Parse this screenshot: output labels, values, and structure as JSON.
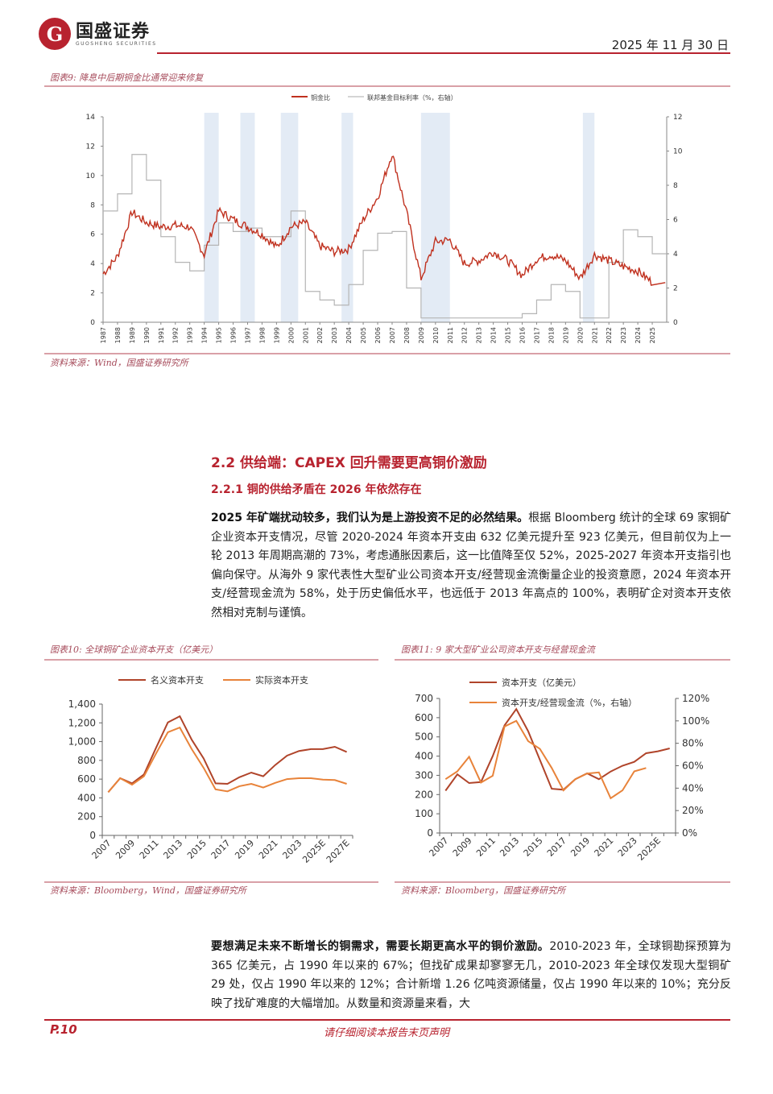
{
  "header": {
    "logo_mark": "G",
    "company_cn": "国盛证券",
    "company_en": "GUOSHENG SECURITIES",
    "date": "2025 年 11 月 30 日"
  },
  "fig9": {
    "title": "图表9: 降息中后期铜金比通常迎来修复",
    "legend": [
      "铜金比",
      "联邦基金目标利率（%，右轴）"
    ],
    "source": "资料来源：Wind，国盛证券研究所"
  },
  "section": {
    "h2": "2.2 供给端：CAPEX 回升需要更高铜价激励",
    "h3": "2.2.1 铜的供给矛盾在 2026 年依然存在",
    "para1_bold": "2025 年矿端扰动较多，我们认为是上游投资不足的必然结果。",
    "para1_rest": "根据 Bloomberg 统计的全球 69 家铜矿企业资本开支情况，尽管 2020-2024 年资本开支由 632 亿美元提升至 923 亿美元，但目前仅为上一轮 2013 年周期高潮的 73%，考虑通胀因素后，这一比值降至仅 52%，2025-2027 年资本开支指引也偏向保守。从海外 9 家代表性大型矿业公司资本开支/经营现金流衡量企业的投资意愿，2024 年资本开支/经营现金流为 58%，处于历史偏低水平，也远低于 2013 年高点的 100%，表明矿企对资本开支依然相对克制与谨慎。",
    "para2_bold": "要想满足未来不断增长的铜需求，需要长期更高水平的铜价激励。",
    "para2_rest": "2010-2023 年，全球铜勘探预算为 365 亿美元，占 1990 年以来的 67%；但找矿成果却寥寥无几，2010-2023 年全球仅发现大型铜矿 29 处，仅占 1990 年以来的 12%；合计新增 1.26 亿吨资源储量，仅占 1990 年以来的 10%；充分反映了找矿难度的大幅增加。从数量和资源量来看，大"
  },
  "fig10": {
    "title": "图表10: 全球铜矿企业资本开支（亿美元）",
    "source": "资料来源：Bloomberg，Wind，国盛证券研究所"
  },
  "fig11": {
    "title": "图表11: 9 家大型矿业公司资本开支与经营现金流",
    "source": "资料来源：Bloomberg，国盛证券研究所"
  },
  "footer": {
    "page": "P.10",
    "disclaimer": "请仔细阅读本报告末页声明"
  },
  "colors": {
    "brand_red": "#b8232f",
    "copper_line": "#c0311f",
    "orange_line": "#e8833a",
    "dark_line": "#b0442a",
    "shade": "#e3ebf5"
  },
  "chart_data": [
    {
      "type": "line",
      "title": "图表9: 降息中后期铜金比通常迎来修复",
      "x_categories": [
        "1987",
        "1988",
        "1989",
        "1990",
        "1991",
        "1992",
        "1993",
        "1994",
        "1995",
        "1996",
        "1997",
        "1998",
        "1999",
        "2000",
        "2001",
        "2002",
        "2003",
        "2004",
        "2005",
        "2006",
        "2007",
        "2008",
        "2009",
        "2010",
        "2011",
        "2012",
        "2013",
        "2014",
        "2015",
        "2016",
        "2017",
        "2018",
        "2019",
        "2020",
        "2021",
        "2022",
        "2023",
        "2024",
        "2025"
      ],
      "series": [
        {
          "name": "铜金比",
          "axis": "left",
          "values": [
            3.3,
            4.5,
            7.5,
            6.8,
            6.5,
            6.6,
            6.5,
            4.6,
            7.6,
            7.0,
            6.5,
            6.0,
            5.1,
            6.5,
            6.8,
            5.2,
            4.8,
            5.0,
            7.0,
            8.5,
            11.5,
            7.5,
            3.0,
            5.5,
            5.6,
            4.0,
            4.2,
            4.8,
            4.2,
            3.2,
            4.3,
            4.6,
            4.2,
            3.0,
            4.6,
            4.2,
            3.8,
            3.5,
            2.7
          ]
        },
        {
          "name": "联邦基金目标利率（%，右轴）",
          "axis": "right",
          "values": [
            6.5,
            7.5,
            9.8,
            8.3,
            5.0,
            3.5,
            3.0,
            4.5,
            5.8,
            5.3,
            5.5,
            5.0,
            5.0,
            6.5,
            1.8,
            1.3,
            1.0,
            2.2,
            4.2,
            5.2,
            5.3,
            2.0,
            0.25,
            0.25,
            0.25,
            0.25,
            0.25,
            0.25,
            0.25,
            0.5,
            1.3,
            2.2,
            1.8,
            0.25,
            0.25,
            3.5,
            5.4,
            5.0,
            4.0
          ]
        }
      ],
      "shaded_periods": [
        [
          "1994",
          "1995"
        ],
        [
          "1996.5",
          "1997.5"
        ],
        [
          "1999.3",
          "2000.5"
        ],
        [
          "2003.5",
          "2004.3"
        ],
        [
          "2009",
          "2011"
        ],
        [
          "2020.2",
          "2021"
        ]
      ],
      "ylim_left": [
        0,
        14
      ],
      "yticks_left": [
        0,
        2,
        4,
        6,
        8,
        10,
        12,
        14
      ],
      "ylim_right": [
        0,
        12
      ],
      "yticks_right": [
        0,
        2,
        4,
        6,
        8,
        10,
        12
      ],
      "legend_position": "top"
    },
    {
      "type": "line",
      "title": "图表10: 全球铜矿企业资本开支（亿美元）",
      "x_categories": [
        "2007",
        "2008",
        "2009",
        "2010",
        "2011",
        "2012",
        "2013",
        "2014",
        "2015",
        "2016",
        "2017",
        "2018",
        "2019",
        "2020",
        "2021",
        "2022",
        "2023",
        "2024",
        "2025E",
        "2026E",
        "2027E"
      ],
      "x_tick_labels": [
        "2007",
        "2009",
        "2011",
        "2013",
        "2015",
        "2017",
        "2019",
        "2021",
        "2023",
        "2025E",
        "2027E"
      ],
      "series": [
        {
          "name": "名义资本开支",
          "values": [
            460,
            610,
            555,
            650,
            930,
            1205,
            1270,
            1020,
            820,
            555,
            550,
            620,
            670,
            630,
            750,
            850,
            900,
            920,
            920,
            945,
            890
          ]
        },
        {
          "name": "实际资本开支",
          "values": [
            460,
            610,
            540,
            630,
            870,
            1100,
            1150,
            920,
            720,
            490,
            470,
            525,
            550,
            510,
            560,
            600,
            610,
            610,
            595,
            590,
            550
          ]
        }
      ],
      "ylim": [
        0,
        1400
      ],
      "yticks": [
        "0",
        "200",
        "400",
        "600",
        "800",
        "1,000",
        "1,200",
        "1,400"
      ],
      "legend_position": "top"
    },
    {
      "type": "line",
      "title": "图表11: 9 家大型矿业公司资本开支与经营现金流",
      "x_categories": [
        "2007",
        "2008",
        "2009",
        "2010",
        "2011",
        "2012",
        "2013",
        "2014",
        "2015",
        "2016",
        "2017",
        "2018",
        "2019",
        "2020",
        "2021",
        "2022",
        "2023",
        "2024",
        "2025E",
        "2026E"
      ],
      "x_tick_labels": [
        "2007",
        "2009",
        "2011",
        "2013",
        "2015",
        "2017",
        "2019",
        "2021",
        "2023",
        "2025E"
      ],
      "series": [
        {
          "name": "资本开支（亿美元）",
          "axis": "left",
          "values": [
            220,
            305,
            260,
            265,
            400,
            560,
            645,
            530,
            380,
            230,
            225,
            280,
            310,
            280,
            320,
            350,
            370,
            415,
            425,
            440
          ]
        },
        {
          "name": "资本开支/经营现金流（%，右轴）",
          "axis": "right",
          "values": [
            48,
            55,
            68,
            45,
            51,
            95,
            100,
            82,
            75,
            58,
            38,
            48,
            53,
            54,
            31,
            38,
            55,
            58
          ]
        }
      ],
      "ylim_left": [
        0,
        700
      ],
      "yticks_left": [
        0,
        100,
        200,
        300,
        400,
        500,
        600,
        700
      ],
      "ylim_right": [
        0,
        120
      ],
      "yticks_right": [
        "0%",
        "20%",
        "40%",
        "60%",
        "80%",
        "100%",
        "120%"
      ],
      "legend_position": "top"
    }
  ]
}
